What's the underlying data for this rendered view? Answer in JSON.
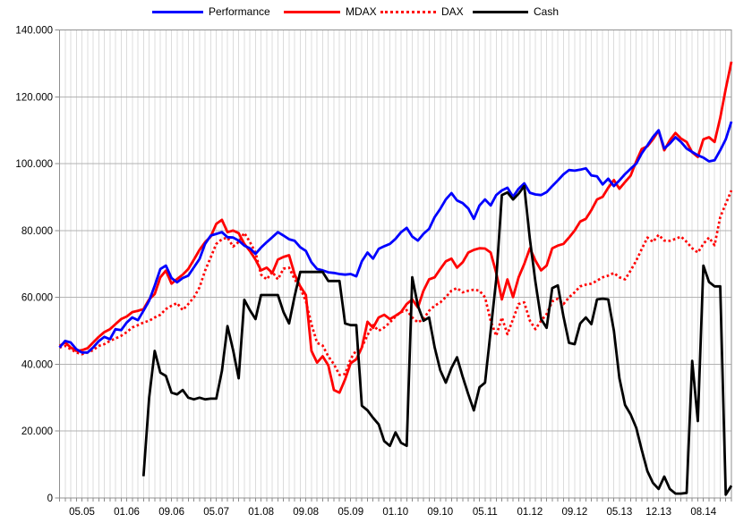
{
  "chart_data": {
    "type": "line",
    "title": "",
    "legend_position": "top",
    "grid": true,
    "y_min": 0,
    "y_max": 140000,
    "x_count": 121,
    "x_unit": "month",
    "y_ticks": [
      {
        "value": 0,
        "label": "0"
      },
      {
        "value": 20000,
        "label": "20.000"
      },
      {
        "value": 40000,
        "label": "40.000"
      },
      {
        "value": 60000,
        "label": "60.000"
      },
      {
        "value": 80000,
        "label": "80.000"
      },
      {
        "value": 100000,
        "label": "100.000"
      },
      {
        "value": 120000,
        "label": "120.000"
      },
      {
        "value": 140000,
        "label": "140.000"
      }
    ],
    "x_ticks": [
      {
        "month": 4,
        "label": "05.05"
      },
      {
        "month": 12,
        "label": "01.06"
      },
      {
        "month": 20,
        "label": "09.06"
      },
      {
        "month": 28,
        "label": "05.07"
      },
      {
        "month": 36,
        "label": "01.08"
      },
      {
        "month": 44,
        "label": "09.08"
      },
      {
        "month": 52,
        "label": "05.09"
      },
      {
        "month": 60,
        "label": "01.10"
      },
      {
        "month": 68,
        "label": "09.10"
      },
      {
        "month": 76,
        "label": "05.11"
      },
      {
        "month": 84,
        "label": "01.12"
      },
      {
        "month": 92,
        "label": "09.12"
      },
      {
        "month": 100,
        "label": "05.13"
      },
      {
        "month": 107,
        "label": "12.13"
      },
      {
        "month": 115,
        "label": "08.14"
      }
    ],
    "style": {
      "grid_v_color": "#dcdcdc",
      "grid_h_color": "#b3b3b3",
      "border_color": "#909090",
      "tick_color": "#8c8c8c",
      "label_color": "#000000"
    },
    "series": [
      {
        "name": "Performance",
        "color": "#0000ff",
        "line_style": "solid",
        "values": [
          45000,
          47000,
          46500,
          44500,
          43500,
          43500,
          45000,
          46900,
          48200,
          47500,
          50500,
          50200,
          52500,
          54000,
          53200,
          56000,
          59000,
          63500,
          68500,
          69500,
          65800,
          64500,
          65800,
          66500,
          69000,
          71500,
          76000,
          78500,
          79000,
          79500,
          78000,
          77900,
          77000,
          75500,
          74700,
          73000,
          74900,
          76500,
          78000,
          79500,
          78500,
          77400,
          76900,
          75000,
          73900,
          70500,
          68500,
          68100,
          67500,
          67300,
          67000,
          66800,
          67000,
          66300,
          70800,
          73400,
          71600,
          74500,
          75300,
          76000,
          77500,
          79500,
          80800,
          78200,
          77000,
          79000,
          80500,
          84000,
          86500,
          89300,
          91200,
          89000,
          88200,
          86600,
          83500,
          87500,
          89300,
          87500,
          90600,
          92000,
          92800,
          90100,
          92500,
          94100,
          91300,
          90800,
          90600,
          91500,
          93300,
          95000,
          96800,
          98100,
          97900,
          98200,
          98600,
          96500,
          96200,
          93800,
          95500,
          93300,
          95000,
          96900,
          98500,
          100000,
          103100,
          105500,
          108000,
          110000,
          104500,
          106000,
          107900,
          106500,
          104500,
          103500,
          102500,
          101800,
          100700,
          101000,
          104000,
          107300,
          112600
        ]
      },
      {
        "name": "MDAX",
        "color": "#ff0000",
        "line_style": "solid",
        "values": [
          45500,
          46500,
          45000,
          44000,
          44200,
          44800,
          46500,
          48200,
          49600,
          50500,
          52000,
          53500,
          54300,
          55600,
          56000,
          56500,
          59400,
          61000,
          66000,
          68000,
          64100,
          65500,
          66800,
          68500,
          71300,
          74200,
          76500,
          78200,
          82000,
          83200,
          79500,
          80000,
          79200,
          76000,
          73900,
          71300,
          68100,
          68900,
          67300,
          71300,
          72100,
          72600,
          66800,
          63300,
          60700,
          44000,
          40500,
          42400,
          39700,
          32300,
          31500,
          35500,
          40300,
          41500,
          45000,
          52700,
          50900,
          54000,
          54800,
          53500,
          54500,
          55600,
          58000,
          59400,
          57000,
          62000,
          65400,
          66000,
          68500,
          70800,
          71600,
          68900,
          70500,
          73400,
          74200,
          74700,
          74600,
          73400,
          67300,
          59400,
          65400,
          60100,
          66000,
          70000,
          74700,
          71000,
          68100,
          69500,
          74700,
          75500,
          76000,
          77900,
          80000,
          82700,
          83500,
          86100,
          89300,
          90100,
          92800,
          95100,
          92500,
          94500,
          96400,
          100700,
          104400,
          105200,
          107300,
          109900,
          104000,
          107000,
          109200,
          107500,
          106500,
          103400,
          102000,
          107300,
          107900,
          106500,
          113700,
          122400,
          130500
        ]
      },
      {
        "name": "DAX",
        "color": "#ff0000",
        "line_style": "dotted",
        "values": [
          45000,
          45500,
          44500,
          43500,
          43000,
          43500,
          44200,
          45500,
          46000,
          47000,
          47700,
          48500,
          49600,
          51000,
          51700,
          52500,
          53000,
          54000,
          54800,
          56500,
          57500,
          58300,
          56200,
          58000,
          60000,
          63000,
          68000,
          72000,
          76000,
          77400,
          77900,
          75200,
          76600,
          79300,
          76600,
          73400,
          66800,
          65400,
          67600,
          65400,
          68600,
          68900,
          65400,
          62800,
          58800,
          52000,
          46400,
          45600,
          42400,
          40000,
          36800,
          37100,
          41600,
          44200,
          45100,
          48700,
          51700,
          50000,
          51000,
          52500,
          54300,
          55600,
          56200,
          54000,
          52500,
          53500,
          56000,
          57500,
          58500,
          60100,
          62000,
          62800,
          61500,
          62000,
          62300,
          62000,
          60000,
          53000,
          48500,
          54000,
          49000,
          53500,
          58000,
          58500,
          53000,
          50500,
          53000,
          55000,
          58800,
          59600,
          58000,
          60000,
          61500,
          63300,
          63800,
          64100,
          65000,
          66000,
          66500,
          67300,
          66000,
          65400,
          68000,
          71000,
          74500,
          77900,
          76600,
          78700,
          77000,
          76900,
          77500,
          78200,
          76600,
          74700,
          73400,
          76000,
          77900,
          75600,
          84000,
          88000,
          92000
        ]
      },
      {
        "name": "Cash",
        "color": "#000000",
        "line_style": "solid",
        "values": [
          null,
          null,
          null,
          null,
          null,
          null,
          null,
          null,
          null,
          null,
          null,
          null,
          null,
          null,
          null,
          6500,
          30000,
          44000,
          37500,
          36500,
          31500,
          31000,
          32300,
          30000,
          29500,
          30000,
          29500,
          29700,
          29700,
          38000,
          51400,
          44200,
          35800,
          59300,
          56200,
          53500,
          60700,
          60700,
          60700,
          60700,
          55600,
          52200,
          60500,
          67600,
          67600,
          67600,
          67600,
          67600,
          64900,
          64900,
          64900,
          52200,
          51700,
          51700,
          27600,
          26200,
          24000,
          22000,
          17000,
          15600,
          19600,
          16500,
          15600,
          66000,
          57500,
          53000,
          54000,
          45100,
          38200,
          34500,
          38900,
          42100,
          36300,
          31000,
          26200,
          33100,
          34500,
          50000,
          65400,
          90600,
          91400,
          89300,
          91000,
          93300,
          77400,
          64600,
          53500,
          50900,
          62800,
          63600,
          54300,
          46400,
          46000,
          52200,
          54000,
          52000,
          59400,
          59600,
          59400,
          50100,
          35800,
          27800,
          25000,
          21000,
          14300,
          8000,
          4500,
          2700,
          6400,
          2700,
          1300,
          1300,
          1500,
          41000,
          23000,
          69500,
          64600,
          63300,
          63300,
          1000,
          3700
        ]
      }
    ]
  }
}
